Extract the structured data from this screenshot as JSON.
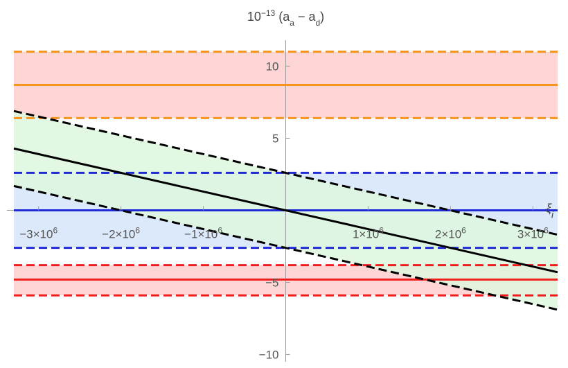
{
  "chart_data": {
    "type": "line",
    "x_axis": {
      "label_main": "ξ",
      "label_sub": "i",
      "range": [
        -3300000,
        3300000
      ],
      "ticks": [
        {
          "value": -3000000,
          "mant": "−3×10",
          "exp": "6"
        },
        {
          "value": -2000000,
          "mant": "−2×10",
          "exp": "6"
        },
        {
          "value": -1000000,
          "mant": "−1×10",
          "exp": "6"
        },
        {
          "value": 1000000,
          "mant": "1×10",
          "exp": "6"
        },
        {
          "value": 2000000,
          "mant": "2×10",
          "exp": "6"
        },
        {
          "value": 3000000,
          "mant": "3×10",
          "exp": "6"
        }
      ]
    },
    "y_axis": {
      "label_prefix": "10",
      "label_exp": "−13",
      "label_paren_open": " (a",
      "label_sub_a": "a",
      "label_minus": " − a",
      "label_sub_d": "d",
      "label_paren_close": ")",
      "range": [
        -10.5,
        11.8
      ],
      "ticks": [
        {
          "value": 10,
          "label": "10"
        },
        {
          "value": 5,
          "label": "5"
        },
        {
          "value": -5,
          "label": "−5"
        },
        {
          "value": -10,
          "label": "−10"
        }
      ]
    },
    "bands": [
      {
        "lower": 6.4,
        "upper": 11.0,
        "fill": "#fdd5d5"
      },
      {
        "lower": -2.6,
        "upper": 2.6,
        "fill": "#dce9fb"
      },
      {
        "lower": -5.9,
        "upper": -3.8,
        "fill": "#fdd5d5"
      }
    ],
    "slanted_band": {
      "slope_per_1e6": -1.3,
      "lower_intercept": -2.6,
      "upper_intercept": 2.6,
      "fill": "#ddf7dd"
    },
    "series": [
      {
        "kind": "hline",
        "y": 8.7,
        "color": "#f7941d",
        "dashed": false
      },
      {
        "kind": "hline",
        "y": 11.0,
        "color": "#f7941d",
        "dashed": true
      },
      {
        "kind": "hline",
        "y": 6.4,
        "color": "#f7941d",
        "dashed": true
      },
      {
        "kind": "hline",
        "y": 0.0,
        "color": "#1f2ad6",
        "dashed": false
      },
      {
        "kind": "hline",
        "y": 2.6,
        "color": "#1f2ad6",
        "dashed": true
      },
      {
        "kind": "hline",
        "y": -2.6,
        "color": "#1f2ad6",
        "dashed": true
      },
      {
        "kind": "hline",
        "y": -4.8,
        "color": "#f01d1d",
        "dashed": false
      },
      {
        "kind": "hline",
        "y": -3.8,
        "color": "#f01d1d",
        "dashed": true
      },
      {
        "kind": "hline",
        "y": -5.9,
        "color": "#f01d1d",
        "dashed": true
      },
      {
        "kind": "line",
        "slope_per_1e6": -1.3,
        "intercept": 0.0,
        "color": "#000000",
        "dashed": false
      },
      {
        "kind": "line",
        "slope_per_1e6": -1.3,
        "intercept": 2.6,
        "color": "#000000",
        "dashed": true
      },
      {
        "kind": "line",
        "slope_per_1e6": -1.3,
        "intercept": -2.6,
        "color": "#000000",
        "dashed": true
      }
    ],
    "grid": false
  }
}
